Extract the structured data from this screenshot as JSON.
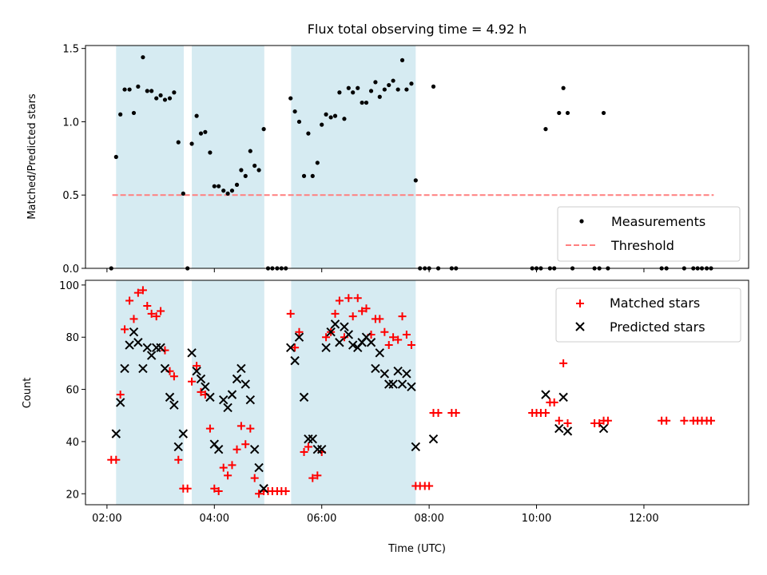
{
  "chart_data": [
    {
      "type": "scatter",
      "title": "Flux total observing time = 4.92 h",
      "xlabel": "",
      "ylabel": "Matched/Predicted stars",
      "ylim": [
        0,
        1.52
      ],
      "yticks": [
        "0.0",
        "0.5",
        "1.0",
        "1.5"
      ],
      "ytick_values": [
        0,
        0.5,
        1.0,
        1.5
      ],
      "xlim": [
        1.6,
        13.95
      ],
      "shaded_spans": [
        [
          2.17,
          3.43
        ],
        [
          3.58,
          4.93
        ],
        [
          5.43,
          7.75
        ]
      ],
      "legend": {
        "placement": "lower-right",
        "entries": [
          "Measurements",
          "Threshold"
        ]
      },
      "threshold": {
        "name": "Threshold",
        "y": 0.5,
        "x": [
          2.1,
          13.3
        ],
        "color": "#ff7f7f"
      },
      "series": [
        {
          "name": "Measurements",
          "color": "#000000",
          "points": [
            [
              2.08,
              0.0
            ],
            [
              2.17,
              0.76
            ],
            [
              2.25,
              1.05
            ],
            [
              2.33,
              1.22
            ],
            [
              2.42,
              1.22
            ],
            [
              2.5,
              1.06
            ],
            [
              2.58,
              1.24
            ],
            [
              2.67,
              1.44
            ],
            [
              2.75,
              1.21
            ],
            [
              2.83,
              1.21
            ],
            [
              2.92,
              1.16
            ],
            [
              3.0,
              1.18
            ],
            [
              3.08,
              1.15
            ],
            [
              3.17,
              1.16
            ],
            [
              3.25,
              1.2
            ],
            [
              3.33,
              0.86
            ],
            [
              3.42,
              0.51
            ],
            [
              3.5,
              0.0
            ],
            [
              3.58,
              0.85
            ],
            [
              3.67,
              1.04
            ],
            [
              3.75,
              0.92
            ],
            [
              3.83,
              0.93
            ],
            [
              3.92,
              0.79
            ],
            [
              4.0,
              0.56
            ],
            [
              4.08,
              0.56
            ],
            [
              4.17,
              0.53
            ],
            [
              4.25,
              0.51
            ],
            [
              4.33,
              0.53
            ],
            [
              4.42,
              0.57
            ],
            [
              4.5,
              0.67
            ],
            [
              4.58,
              0.63
            ],
            [
              4.67,
              0.8
            ],
            [
              4.75,
              0.7
            ],
            [
              4.83,
              0.67
            ],
            [
              4.92,
              0.95
            ],
            [
              5.0,
              0.0
            ],
            [
              5.08,
              0.0
            ],
            [
              5.17,
              0.0
            ],
            [
              5.25,
              0.0
            ],
            [
              5.33,
              0.0
            ],
            [
              5.42,
              1.16
            ],
            [
              5.5,
              1.07
            ],
            [
              5.58,
              1.0
            ],
            [
              5.67,
              0.63
            ],
            [
              5.75,
              0.92
            ],
            [
              5.83,
              0.63
            ],
            [
              5.92,
              0.72
            ],
            [
              6.0,
              0.98
            ],
            [
              6.08,
              1.05
            ],
            [
              6.17,
              1.03
            ],
            [
              6.25,
              1.04
            ],
            [
              6.33,
              1.2
            ],
            [
              6.42,
              1.02
            ],
            [
              6.5,
              1.23
            ],
            [
              6.58,
              1.2
            ],
            [
              6.67,
              1.23
            ],
            [
              6.75,
              1.13
            ],
            [
              6.83,
              1.13
            ],
            [
              6.92,
              1.21
            ],
            [
              7.0,
              1.27
            ],
            [
              7.08,
              1.17
            ],
            [
              7.17,
              1.22
            ],
            [
              7.25,
              1.25
            ],
            [
              7.33,
              1.28
            ],
            [
              7.42,
              1.22
            ],
            [
              7.5,
              1.42
            ],
            [
              7.58,
              1.22
            ],
            [
              7.67,
              1.26
            ],
            [
              7.75,
              0.6
            ],
            [
              7.83,
              0.0
            ],
            [
              7.92,
              0.0
            ],
            [
              8.0,
              0.0
            ],
            [
              8.08,
              1.24
            ],
            [
              8.17,
              0.0
            ],
            [
              8.42,
              0.0
            ],
            [
              8.5,
              0.0
            ],
            [
              9.92,
              0.0
            ],
            [
              10.0,
              0.0
            ],
            [
              10.08,
              0.0
            ],
            [
              10.17,
              0.95
            ],
            [
              10.25,
              0.0
            ],
            [
              10.33,
              0.0
            ],
            [
              10.42,
              1.06
            ],
            [
              10.5,
              1.23
            ],
            [
              10.58,
              1.06
            ],
            [
              10.67,
              0.0
            ],
            [
              11.08,
              0.0
            ],
            [
              11.17,
              0.0
            ],
            [
              11.25,
              1.06
            ],
            [
              11.33,
              0.0
            ],
            [
              12.33,
              0.0
            ],
            [
              12.42,
              0.0
            ],
            [
              12.75,
              0.0
            ],
            [
              12.92,
              0.0
            ],
            [
              13.0,
              0.0
            ],
            [
              13.08,
              0.0
            ],
            [
              13.17,
              0.0
            ],
            [
              13.25,
              0.0
            ]
          ]
        }
      ]
    },
    {
      "type": "scatter",
      "title": "",
      "xlabel": "Time (UTC)",
      "ylabel": "Count",
      "ylim": [
        15.8,
        101.8
      ],
      "yticks": [
        "20",
        "40",
        "60",
        "80",
        "100"
      ],
      "ytick_values": [
        20,
        40,
        60,
        80,
        100
      ],
      "xlim": [
        1.6,
        13.95
      ],
      "xticks": [
        "02:00",
        "04:00",
        "06:00",
        "08:00",
        "10:00",
        "12:00"
      ],
      "xtick_values": [
        2,
        4,
        6,
        8,
        10,
        12
      ],
      "shaded_spans": [
        [
          2.17,
          3.43
        ],
        [
          3.58,
          4.93
        ],
        [
          5.43,
          7.75
        ]
      ],
      "legend": {
        "placement": "upper-right",
        "entries": [
          "Matched stars",
          "Predicted stars"
        ]
      },
      "series": [
        {
          "name": "Matched stars",
          "marker": "plus",
          "color": "#ff0000",
          "points": [
            [
              2.08,
              33
            ],
            [
              2.17,
              33
            ],
            [
              2.25,
              58
            ],
            [
              2.33,
              83
            ],
            [
              2.42,
              94
            ],
            [
              2.5,
              87
            ],
            [
              2.58,
              97
            ],
            [
              2.67,
              98
            ],
            [
              2.75,
              92
            ],
            [
              2.83,
              89
            ],
            [
              2.92,
              88
            ],
            [
              3.0,
              90
            ],
            [
              3.08,
              75
            ],
            [
              3.17,
              67
            ],
            [
              3.25,
              65
            ],
            [
              3.33,
              33
            ],
            [
              3.42,
              22
            ],
            [
              3.5,
              22
            ],
            [
              3.58,
              63
            ],
            [
              3.67,
              69
            ],
            [
              3.75,
              59
            ],
            [
              3.83,
              58
            ],
            [
              3.92,
              45
            ],
            [
              4.0,
              22
            ],
            [
              4.08,
              21
            ],
            [
              4.17,
              30
            ],
            [
              4.25,
              27
            ],
            [
              4.33,
              31
            ],
            [
              4.42,
              37
            ],
            [
              4.5,
              46
            ],
            [
              4.58,
              39
            ],
            [
              4.67,
              45
            ],
            [
              4.75,
              26
            ],
            [
              4.83,
              20
            ],
            [
              4.92,
              21
            ],
            [
              5.0,
              21
            ],
            [
              5.08,
              21
            ],
            [
              5.17,
              21
            ],
            [
              5.25,
              21
            ],
            [
              5.33,
              21
            ],
            [
              5.42,
              89
            ],
            [
              5.5,
              76
            ],
            [
              5.58,
              82
            ],
            [
              5.67,
              36
            ],
            [
              5.75,
              38
            ],
            [
              5.83,
              26
            ],
            [
              5.92,
              27
            ],
            [
              6.0,
              36
            ],
            [
              6.08,
              80
            ],
            [
              6.17,
              82
            ],
            [
              6.25,
              89
            ],
            [
              6.33,
              94
            ],
            [
              6.42,
              80
            ],
            [
              6.5,
              95
            ],
            [
              6.58,
              88
            ],
            [
              6.67,
              95
            ],
            [
              6.75,
              90
            ],
            [
              6.83,
              91
            ],
            [
              6.92,
              81
            ],
            [
              7.0,
              87
            ],
            [
              7.08,
              87
            ],
            [
              7.17,
              82
            ],
            [
              7.25,
              77
            ],
            [
              7.33,
              80
            ],
            [
              7.42,
              79
            ],
            [
              7.5,
              88
            ],
            [
              7.58,
              81
            ],
            [
              7.67,
              77
            ],
            [
              7.75,
              23
            ],
            [
              7.83,
              23
            ],
            [
              7.92,
              23
            ],
            [
              8.0,
              23
            ],
            [
              8.08,
              51
            ],
            [
              8.17,
              51
            ],
            [
              8.42,
              51
            ],
            [
              8.5,
              51
            ],
            [
              9.92,
              51
            ],
            [
              10.0,
              51
            ],
            [
              10.08,
              51
            ],
            [
              10.17,
              51
            ],
            [
              10.25,
              55
            ],
            [
              10.33,
              55
            ],
            [
              10.42,
              48
            ],
            [
              10.5,
              70
            ],
            [
              10.58,
              47
            ],
            [
              11.08,
              47
            ],
            [
              11.17,
              47
            ],
            [
              11.25,
              48
            ],
            [
              11.33,
              48
            ],
            [
              12.33,
              48
            ],
            [
              12.42,
              48
            ],
            [
              12.75,
              48
            ],
            [
              12.92,
              48
            ],
            [
              13.0,
              48
            ],
            [
              13.08,
              48
            ],
            [
              13.17,
              48
            ],
            [
              13.25,
              48
            ]
          ]
        },
        {
          "name": "Predicted stars",
          "marker": "x",
          "color": "#000000",
          "points": [
            [
              2.17,
              43
            ],
            [
              2.25,
              55
            ],
            [
              2.33,
              68
            ],
            [
              2.42,
              77
            ],
            [
              2.5,
              82
            ],
            [
              2.58,
              78
            ],
            [
              2.67,
              68
            ],
            [
              2.75,
              76
            ],
            [
              2.83,
              73
            ],
            [
              2.92,
              76
            ],
            [
              3.0,
              76
            ],
            [
              3.08,
              68
            ],
            [
              3.17,
              57
            ],
            [
              3.25,
              54
            ],
            [
              3.33,
              38
            ],
            [
              3.42,
              43
            ],
            [
              3.58,
              74
            ],
            [
              3.67,
              67
            ],
            [
              3.75,
              64
            ],
            [
              3.83,
              61
            ],
            [
              3.92,
              57
            ],
            [
              4.0,
              39
            ],
            [
              4.08,
              37
            ],
            [
              4.17,
              56
            ],
            [
              4.25,
              53
            ],
            [
              4.33,
              58
            ],
            [
              4.42,
              64
            ],
            [
              4.5,
              68
            ],
            [
              4.58,
              62
            ],
            [
              4.67,
              56
            ],
            [
              4.75,
              37
            ],
            [
              4.83,
              30
            ],
            [
              4.92,
              22
            ],
            [
              5.42,
              76
            ],
            [
              5.5,
              71
            ],
            [
              5.58,
              80
            ],
            [
              5.67,
              57
            ],
            [
              5.75,
              41
            ],
            [
              5.83,
              41
            ],
            [
              5.92,
              37
            ],
            [
              6.0,
              37
            ],
            [
              6.08,
              76
            ],
            [
              6.17,
              82
            ],
            [
              6.25,
              85
            ],
            [
              6.33,
              78
            ],
            [
              6.42,
              84
            ],
            [
              6.5,
              81
            ],
            [
              6.58,
              77
            ],
            [
              6.67,
              76
            ],
            [
              6.75,
              78
            ],
            [
              6.83,
              80
            ],
            [
              6.92,
              78
            ],
            [
              7.0,
              68
            ],
            [
              7.08,
              74
            ],
            [
              7.17,
              66
            ],
            [
              7.25,
              62
            ],
            [
              7.33,
              62
            ],
            [
              7.42,
              67
            ],
            [
              7.5,
              62
            ],
            [
              7.58,
              66
            ],
            [
              7.67,
              61
            ],
            [
              7.75,
              38
            ],
            [
              8.08,
              41
            ],
            [
              10.17,
              58
            ],
            [
              10.42,
              45
            ],
            [
              10.5,
              57
            ],
            [
              10.58,
              44
            ],
            [
              11.25,
              45
            ]
          ]
        }
      ]
    }
  ]
}
